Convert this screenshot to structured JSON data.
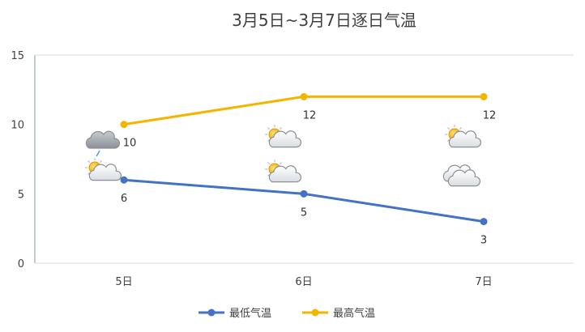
{
  "chart_data": {
    "type": "line",
    "title": "3月5日~3月7日逐日气温",
    "categories": [
      "5日",
      "6日",
      "7日"
    ],
    "ylim": [
      0,
      15
    ],
    "yticks": [
      0,
      5,
      10,
      15
    ],
    "grid": false,
    "legend_position": "bottom",
    "series": [
      {
        "name": "最低气温",
        "values": [
          6,
          5,
          3
        ],
        "color": "#4472C4",
        "label_position": "below"
      },
      {
        "name": "最高气温",
        "values": [
          10,
          12,
          12
        ],
        "color": "#F2B600",
        "label_position": "below-right"
      }
    ],
    "weather_icons": {
      "high": [
        "cloudy-icon",
        "partly-cloudy-icon",
        "partly-cloudy-icon"
      ],
      "low": [
        "partly-cloudy-icon",
        "partly-cloudy-icon",
        "cloudy-icon"
      ]
    }
  }
}
